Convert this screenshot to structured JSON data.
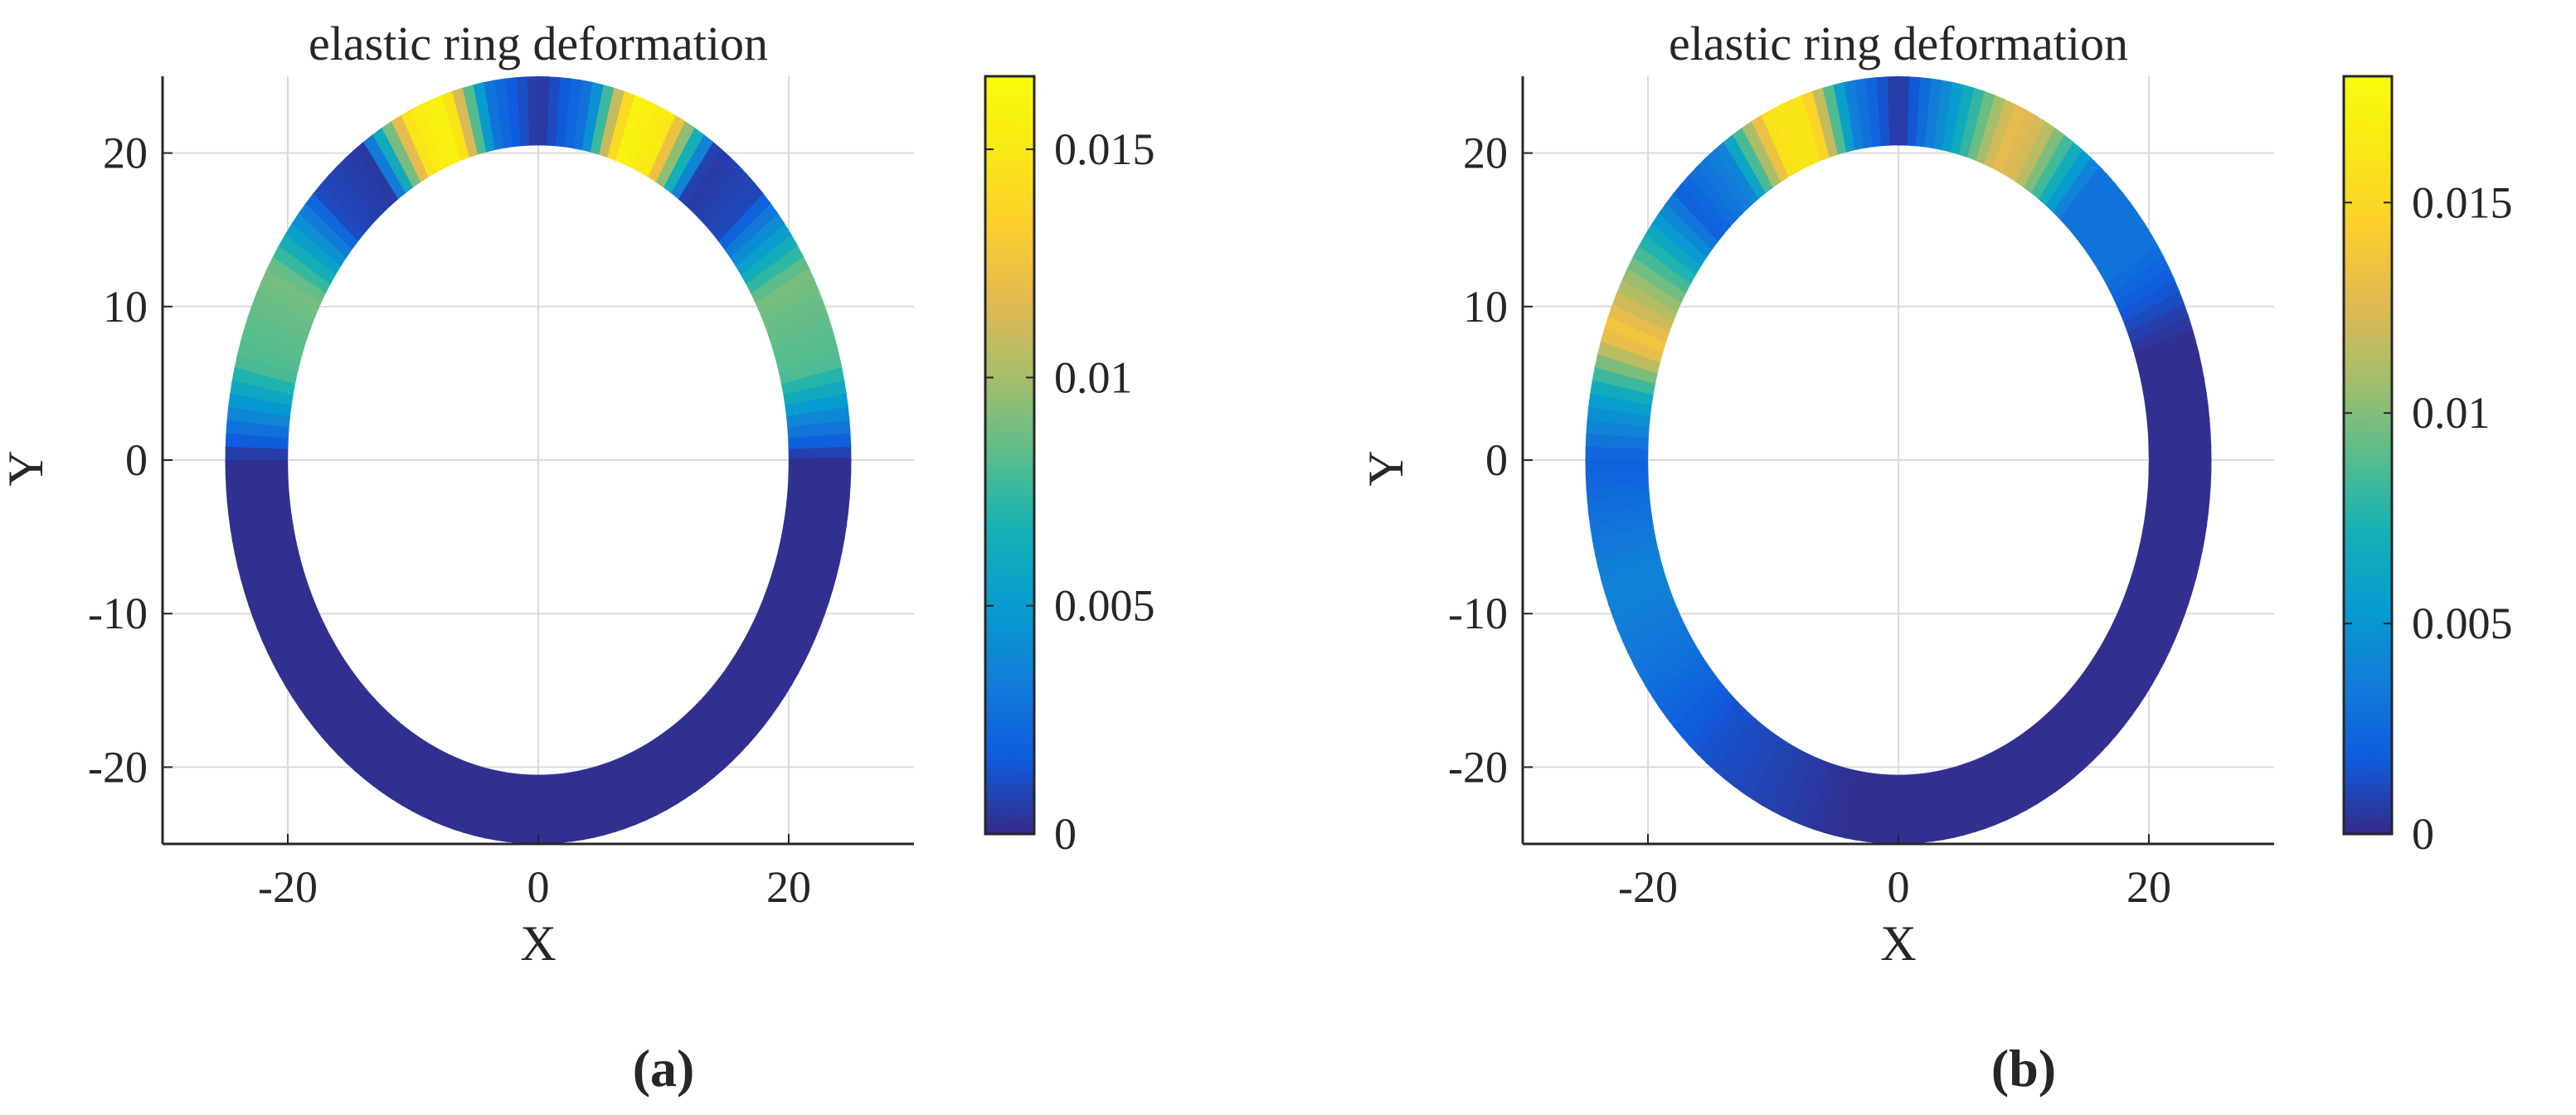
{
  "chart_data": [
    {
      "panel_label": "(a)",
      "type": "heatmap",
      "plot": "ring deformation colormap",
      "title": "elastic ring deformation",
      "xlabel": "X",
      "ylabel": "Y",
      "xlim": [
        -30,
        30
      ],
      "ylim": [
        -25,
        25
      ],
      "xticks": [
        "-20",
        "0",
        "20"
      ],
      "yticks": [
        "20",
        "10",
        "0",
        "-10",
        "-20"
      ],
      "grid": true,
      "ring": {
        "outer_x": 25,
        "outer_y": 25,
        "inner_x": 20,
        "inner_y": 20.5
      },
      "colormap": "parula",
      "colorbar": {
        "range": [
          0,
          0.0166
        ],
        "ticks": [
          "0",
          "0.005",
          "0.01",
          "0.015"
        ]
      },
      "deformation_by_angle_deg": [
        [
          0,
          0.0002
        ],
        [
          15,
          0.008
        ],
        [
          30,
          0.009
        ],
        [
          45,
          0.001
        ],
        [
          55,
          0.0005
        ],
        [
          65,
          0.015
        ],
        [
          72,
          0.016
        ],
        [
          80,
          0.003
        ],
        [
          90,
          0.0003
        ],
        [
          100,
          0.003
        ],
        [
          108,
          0.016
        ],
        [
          115,
          0.015
        ],
        [
          125,
          0.0005
        ],
        [
          135,
          0.001
        ],
        [
          150,
          0.009
        ],
        [
          165,
          0.008
        ],
        [
          180,
          0.0002
        ],
        [
          200,
          0.0002
        ],
        [
          270,
          0.0002
        ],
        [
          340,
          0.0002
        ],
        [
          360,
          0.0002
        ]
      ]
    },
    {
      "panel_label": "(b)",
      "type": "heatmap",
      "plot": "ring deformation colormap",
      "title": "elastic ring deformation",
      "xlabel": "X",
      "ylabel": "Y",
      "xlim": [
        -30,
        30
      ],
      "ylim": [
        -25,
        25
      ],
      "xticks": [
        "-20",
        "0",
        "20"
      ],
      "yticks": [
        "20",
        "10",
        "0",
        "-10",
        "-20"
      ],
      "grid": true,
      "ring": {
        "outer_x": 25,
        "outer_y": 25,
        "inner_x": 20,
        "inner_y": 20.5
      },
      "colormap": "parula",
      "colorbar": {
        "range": [
          0,
          0.018
        ],
        "ticks": [
          "0",
          "0.005",
          "0.01",
          "0.015"
        ]
      },
      "deformation_by_angle_deg": [
        [
          0,
          0.0002
        ],
        [
          20,
          0.0002
        ],
        [
          35,
          0.003
        ],
        [
          50,
          0.003
        ],
        [
          62,
          0.012
        ],
        [
          68,
          0.013
        ],
        [
          78,
          0.006
        ],
        [
          90,
          0.0003
        ],
        [
          100,
          0.004
        ],
        [
          108,
          0.016
        ],
        [
          115,
          0.016
        ],
        [
          125,
          0.004
        ],
        [
          135,
          0.002
        ],
        [
          150,
          0.01
        ],
        [
          160,
          0.014
        ],
        [
          170,
          0.006
        ],
        [
          180,
          0.002
        ],
        [
          200,
          0.004
        ],
        [
          215,
          0.003
        ],
        [
          230,
          0.0015
        ],
        [
          260,
          0.0002
        ],
        [
          300,
          0.0002
        ],
        [
          340,
          0.0002
        ],
        [
          360,
          0.0002
        ]
      ]
    }
  ]
}
